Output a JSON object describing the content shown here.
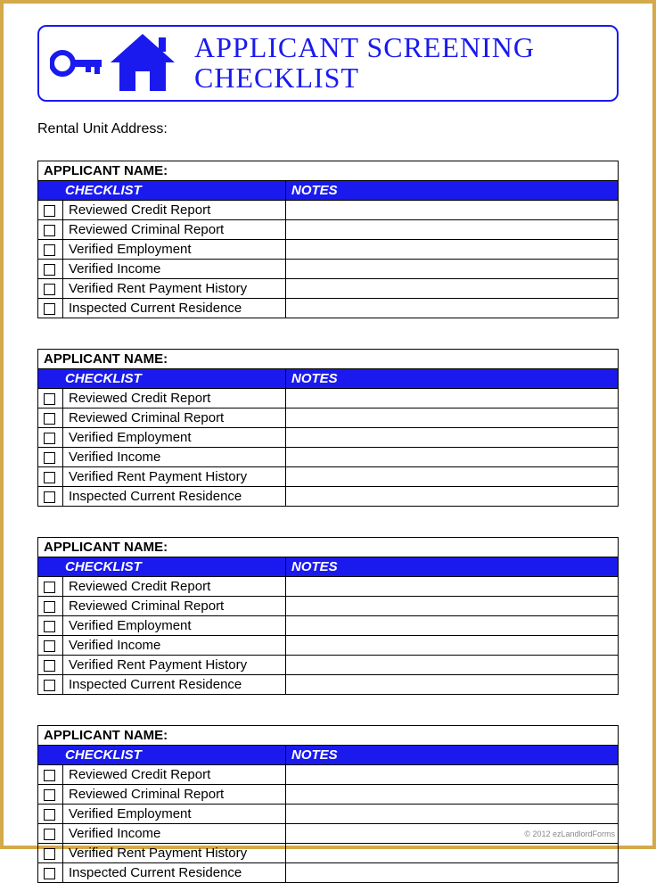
{
  "title_line1": "APPLICANT SCREENING",
  "title_line2": "CHECKLIST",
  "address_label": "Rental Unit Address:",
  "block_labels": {
    "applicant_name": "APPLICANT NAME:",
    "checklist_header": "CHECKLIST",
    "notes_header": "NOTES"
  },
  "checklist_items": [
    "Reviewed Credit Report",
    "Reviewed Criminal Report",
    "Verified Employment",
    "Verified Income",
    "Verified Rent Payment History",
    "Inspected Current Residence"
  ],
  "num_applicant_blocks": 4,
  "colors": {
    "accent_blue": "#1a1aee",
    "frame_gold": "#d4a94a",
    "header_text": "#ffffff",
    "body_text": "#000000"
  },
  "footer": "© 2012 ezLandlordForms"
}
